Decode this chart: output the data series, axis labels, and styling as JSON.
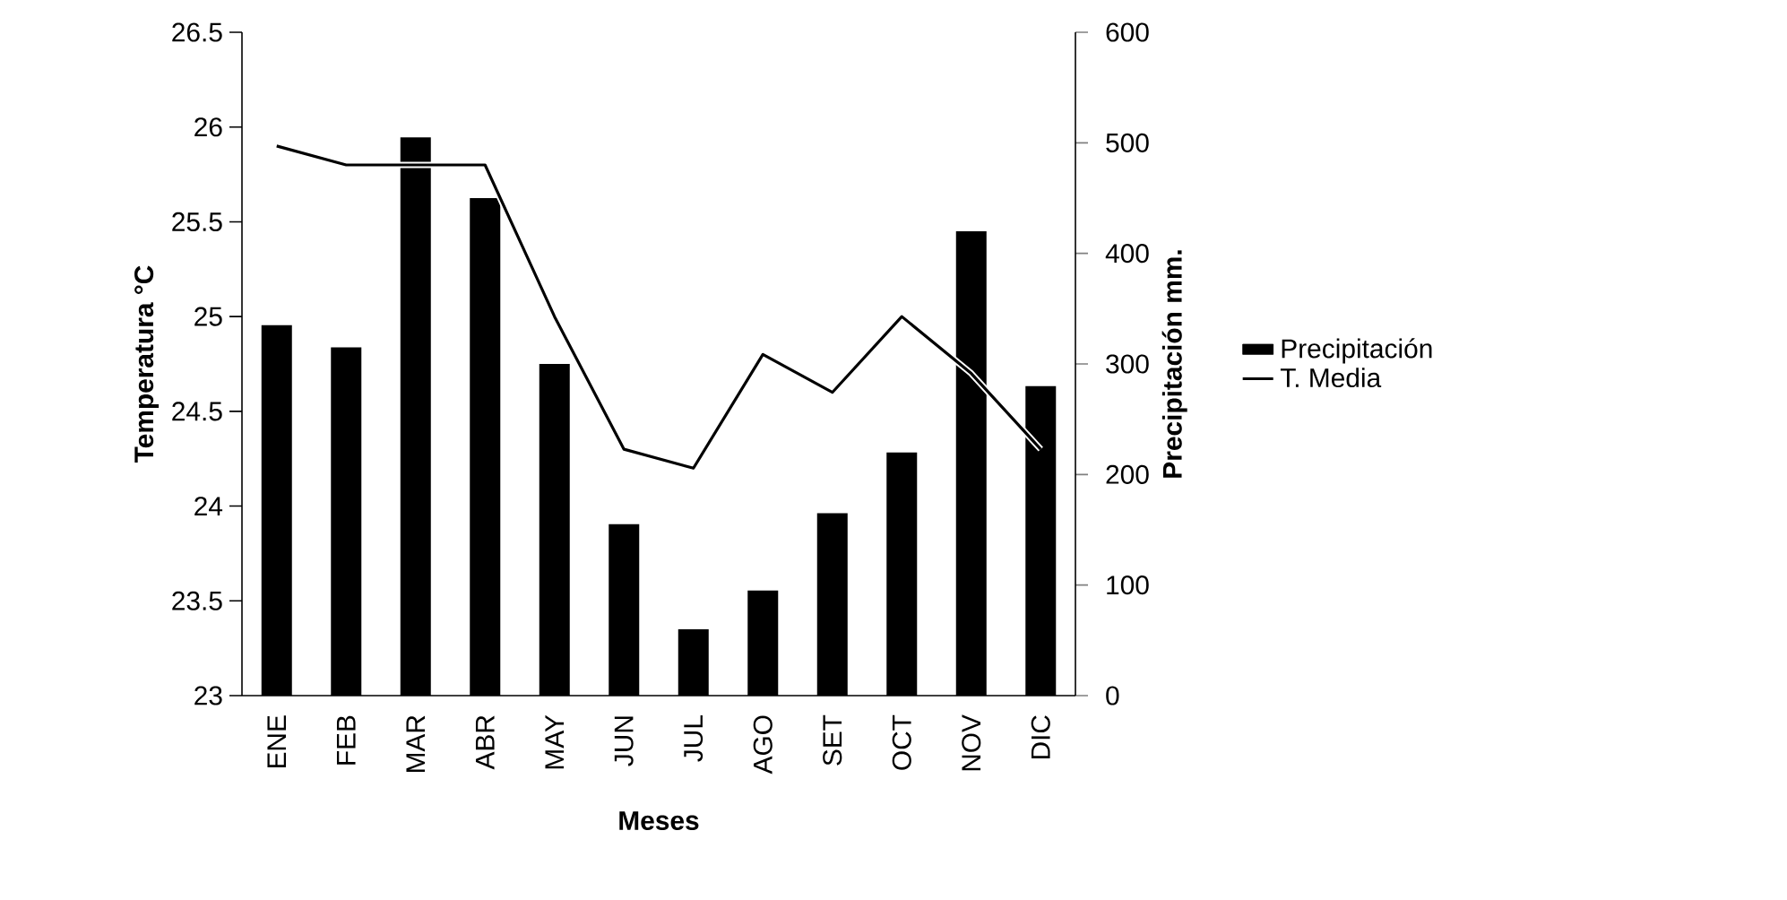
{
  "chart_data": {
    "type": "bar",
    "xlabel": "Meses",
    "ylabel": "Temperatura °C",
    "y2label": "Precipitación mm.",
    "categories": [
      "ENE",
      "FEB",
      "MAR",
      "ABR",
      "MAY",
      "JUN",
      "JUL",
      "AGO",
      "SET",
      "OCT",
      "NOV",
      "DIC"
    ],
    "series": [
      {
        "name": "Precipitación",
        "axis": "y2",
        "color": "#000000",
        "values": [
          335,
          315,
          505,
          450,
          300,
          155,
          60,
          95,
          165,
          220,
          420,
          280
        ]
      },
      {
        "name": "T. Media",
        "type": "line",
        "color": "#000000",
        "values": [
          25.9,
          25.8,
          25.8,
          25.8,
          25.0,
          24.3,
          24.2,
          24.8,
          24.6,
          25.0,
          24.7,
          24.3
        ]
      }
    ],
    "ylim": [
      23,
      26.5
    ],
    "yticks": [
      23,
      23.5,
      24,
      24.5,
      25,
      25.5,
      26,
      26.5
    ],
    "y2lim": [
      0,
      600
    ],
    "y2ticks": [
      0,
      100,
      200,
      300,
      400,
      500,
      600
    ],
    "legend": "right"
  }
}
